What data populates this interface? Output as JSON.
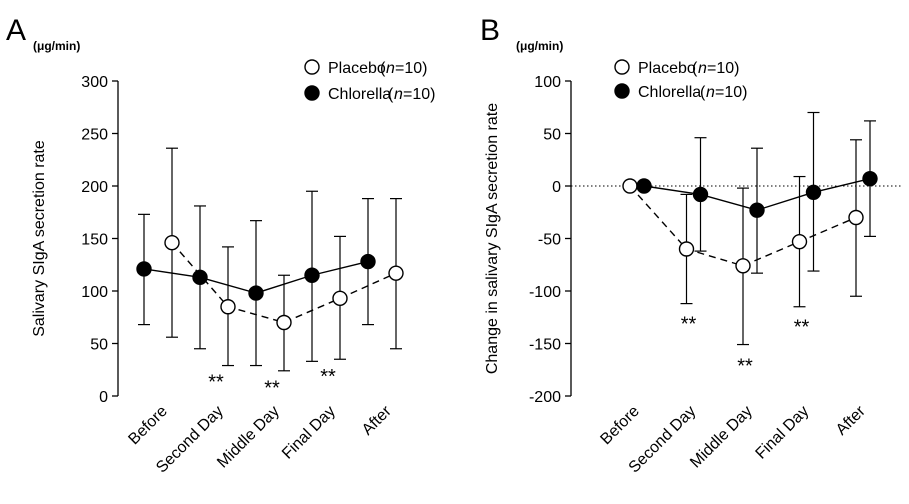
{
  "chart_data": [
    {
      "panel_letter": "A",
      "type": "line",
      "unit": "(μg/min)",
      "ylabel": "Salivary SIgA secretion rate",
      "xlabel": "",
      "ylim": [
        0,
        300
      ],
      "yticks": [
        0,
        50,
        100,
        150,
        200,
        250,
        300
      ],
      "categories": [
        "Before",
        "Second Day",
        "Middle Day",
        "Final Day",
        "After"
      ],
      "zero_reference_line": false,
      "legend_position": "top-right",
      "series": [
        {
          "name": "Placebo",
          "n_label": "n",
          "n_value": "=10)",
          "color": "#000000",
          "marker": "open-circle",
          "line_style": "dashed",
          "values": [
            146,
            85,
            70,
            93,
            117
          ],
          "error_low": [
            56,
            29,
            24,
            35,
            45
          ],
          "error_high": [
            236,
            142,
            115,
            152,
            188
          ]
        },
        {
          "name": "Chlorella",
          "n_label": "n",
          "n_value": "=10)",
          "color": "#000000",
          "marker": "filled-circle",
          "line_style": "solid",
          "values": [
            121,
            113,
            98,
            115,
            128
          ],
          "error_low": [
            68,
            45,
            29,
            33,
            68
          ],
          "error_high": [
            173,
            181,
            167,
            195,
            188
          ]
        }
      ],
      "annotations": [
        {
          "category": "Second Day",
          "text": "**",
          "y": 15
        },
        {
          "category": "Middle Day",
          "text": "**",
          "y": 9
        },
        {
          "category": "Final Day",
          "text": "**",
          "y": 20
        }
      ]
    },
    {
      "panel_letter": "B",
      "type": "line",
      "unit": "(μg/min)",
      "ylabel": "Change in salivary SIgA secretion rate",
      "xlabel": "",
      "ylim": [
        -200,
        100
      ],
      "yticks": [
        -200,
        -150,
        -100,
        -50,
        0,
        50,
        100
      ],
      "categories": [
        "Before",
        "Second Day",
        "Middle Day",
        "Final Day",
        "After"
      ],
      "zero_reference_line": true,
      "legend_position": "top-right",
      "series": [
        {
          "name": "Placebo",
          "n_label": "n",
          "n_value": "=10)",
          "color": "#000000",
          "marker": "open-circle",
          "line_style": "dashed",
          "values": [
            0,
            -60,
            -76,
            -53,
            -30
          ],
          "error_low": [
            0,
            -112,
            -151,
            -115,
            -105
          ],
          "error_high": [
            0,
            -8,
            -2,
            9,
            44
          ]
        },
        {
          "name": "Chlorella",
          "n_label": "n",
          "n_value": "=10)",
          "color": "#000000",
          "marker": "filled-circle",
          "line_style": "solid",
          "values": [
            0,
            -8,
            -23,
            -6,
            7
          ],
          "error_low": [
            0,
            -62,
            -83,
            -81,
            -48
          ],
          "error_high": [
            0,
            46,
            36,
            70,
            62
          ]
        }
      ],
      "annotations": [
        {
          "category": "Second Day",
          "text": "**",
          "y": -130
        },
        {
          "category": "Middle Day",
          "text": "**",
          "y": -170
        },
        {
          "category": "Final Day",
          "text": "**",
          "y": -133
        }
      ]
    }
  ]
}
